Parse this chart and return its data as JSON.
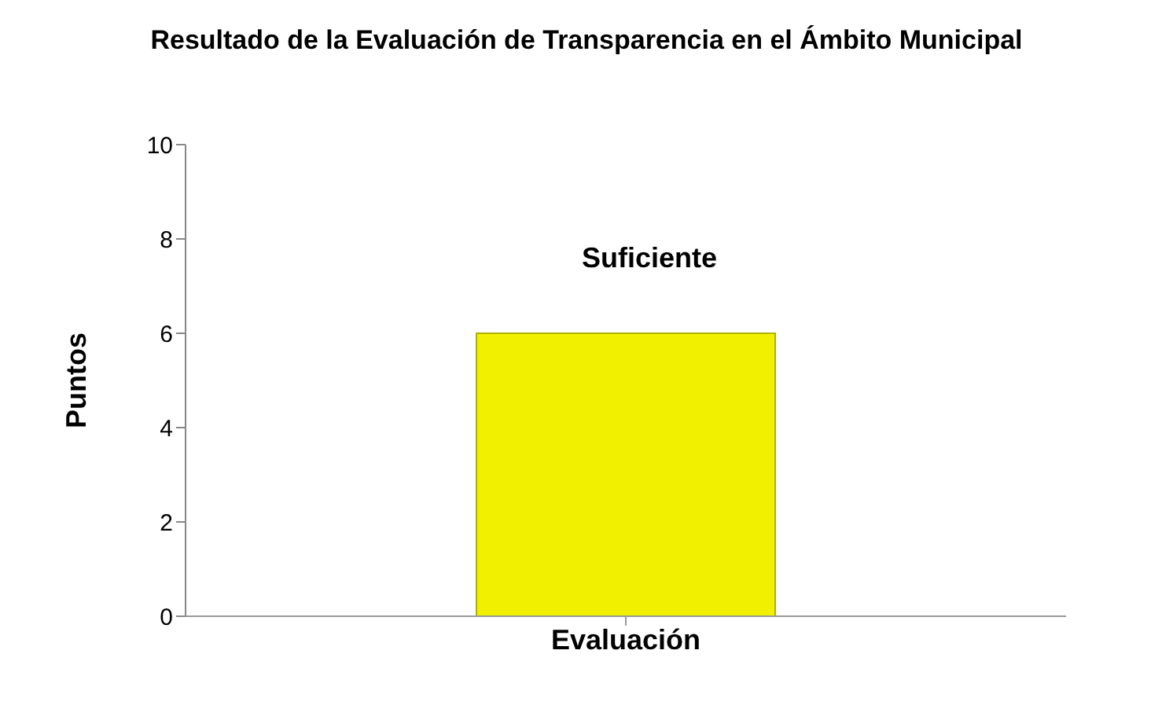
{
  "chart_data": {
    "type": "bar",
    "title": "Resultado de la Evaluación de Transparencia en el Ámbito Municipal",
    "ylabel": "Puntos",
    "categories": [
      "Evaluación"
    ],
    "values": [
      6
    ],
    "color": "#f0f000",
    "ylim": [
      0,
      10
    ],
    "yticks": [
      0,
      2,
      4,
      6,
      8,
      10
    ],
    "grid": false,
    "legend": false,
    "annotations": [
      "Suficiente"
    ]
  }
}
